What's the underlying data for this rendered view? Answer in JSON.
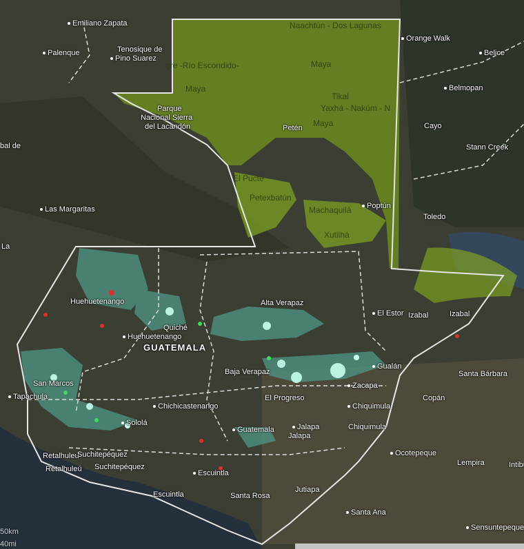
{
  "map": {
    "colors": {
      "land": "#3b3e33",
      "ocean": "#25303d",
      "protected_area": "#7ea021",
      "forest_cover": "#4f9c8c",
      "border": "#e6e6e6",
      "alert_red": "#e0302a",
      "alert_teal": "#a8f0e0"
    },
    "place_labels": [
      "Emiliano Zapata",
      "Palenque",
      "Tenosique de",
      "Pino Suarez",
      "Orange Walk",
      "Belice",
      "Belmopan",
      "Cayo",
      "Stann Creek",
      "Toledo",
      "Parque",
      "Nacional Sierra",
      "del Lacandón",
      "Petén",
      "Poptún",
      "Las Margaritas",
      "Huehuetenango",
      "Huehuetenango",
      "Quiché",
      "GUATEMALA",
      "Alta Verapaz",
      "El Estor",
      "Izabal",
      "Izabal",
      "Baja Verapaz",
      "Gualán",
      "Zacapa",
      "Santa Bárbara",
      "San Marcos",
      "Tapachula",
      "El Progreso",
      "Chichicastenango",
      "Chiquimula",
      "Chiquimula",
      "Copán",
      "Sololá",
      "Guatemala",
      "Jalapa",
      "Jalapa",
      "Retalhuleu",
      "Suchitepéquez",
      "Retalhuleú",
      "Suchitepéquez",
      "Escuintla",
      "Ocotepeque",
      "Lempira",
      "Intibucá",
      "Santa Rosa",
      "Jutiapa",
      "Escuintla",
      "Santa Ana",
      "Sensuntepeque",
      "bal de",
      "La"
    ],
    "protected_area_labels": [
      "Naachtún - Dos Lagunas",
      "Maya",
      "gre -Río Escondido-",
      "Maya",
      "Tikal",
      "Yaxhá - Nakúm - N",
      "Maya",
      "El Pucté",
      "Petexbatún",
      "Machaquilá",
      "Xutilhá"
    ],
    "scale": {
      "km": "50km",
      "mi": "40mi"
    }
  }
}
